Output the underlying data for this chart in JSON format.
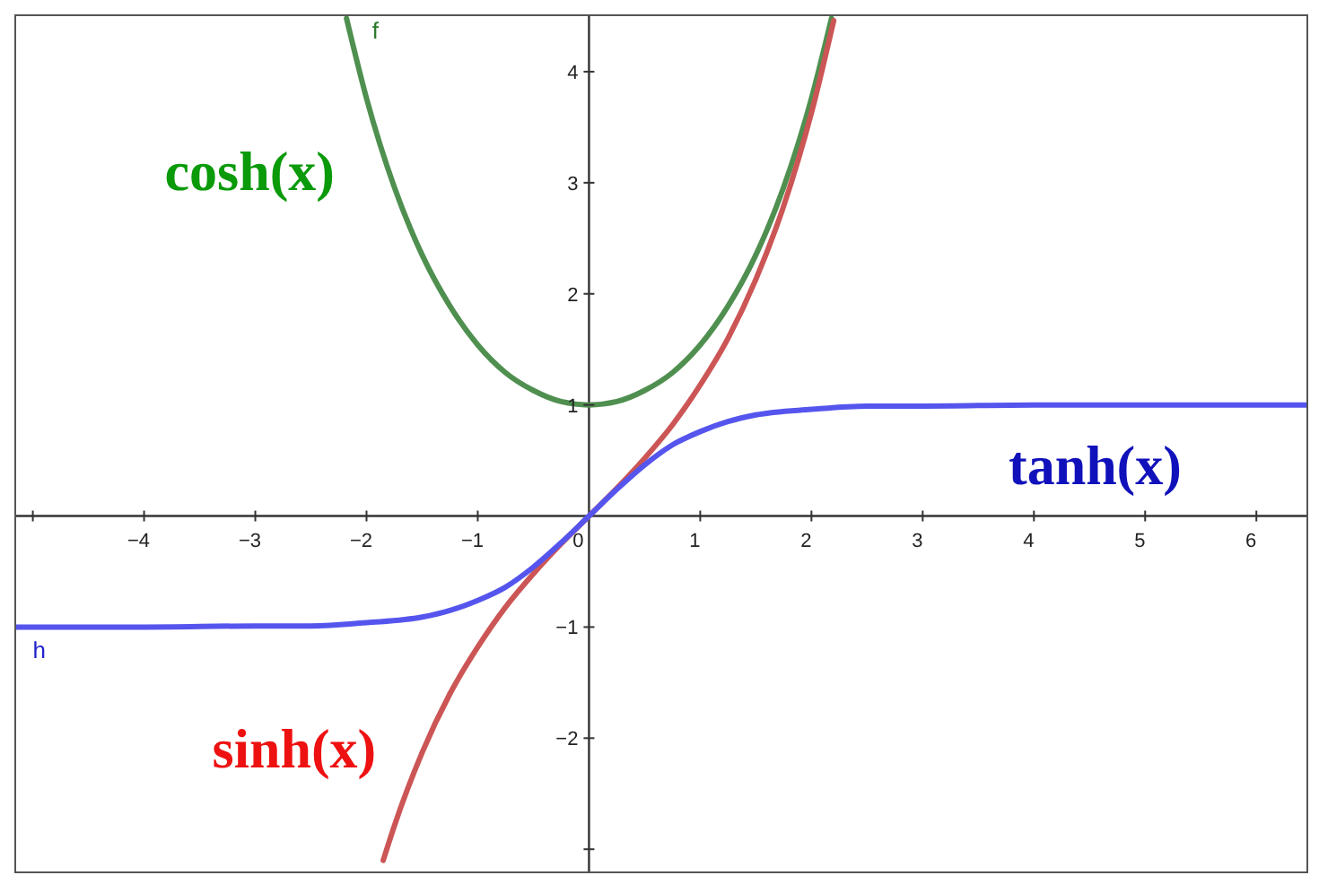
{
  "chart_data": {
    "type": "line",
    "xlim": [
      -5.15,
      6.45
    ],
    "ylim": [
      -3.2,
      4.5
    ],
    "xticks": [
      {
        "value": -5,
        "label": null
      },
      -4,
      -3,
      -2,
      -1,
      0,
      1,
      2,
      3,
      4,
      5,
      6
    ],
    "yticks": [
      {
        "value": -3,
        "label": null
      },
      -2,
      -1,
      1,
      2,
      3,
      4
    ],
    "grid": false,
    "legend": false,
    "marker": "none",
    "line_style": "solid",
    "annotations": [
      "f",
      "h"
    ],
    "series": [
      {
        "name": "cosh(x)",
        "color": "#4f8f4f",
        "x": [
          -2.18,
          -2,
          -1.75,
          -1.5,
          -1.25,
          -1,
          -0.75,
          -0.5,
          -0.25,
          0,
          0.25,
          0.5,
          0.75,
          1,
          1.25,
          1.5,
          1.75,
          2,
          2.18
        ],
        "values": [
          4.48,
          3.76,
          2.96,
          2.35,
          1.89,
          1.54,
          1.29,
          1.13,
          1.03,
          1,
          1.03,
          1.13,
          1.29,
          1.54,
          1.89,
          2.35,
          2.96,
          3.76,
          4.48
        ]
      },
      {
        "name": "sinh(x)",
        "color": "#cc5555",
        "x": [
          -1.85,
          -1.75,
          -1.5,
          -1.25,
          -1,
          -0.75,
          -0.5,
          -0.25,
          0,
          0.25,
          0.5,
          0.75,
          1,
          1.25,
          1.5,
          1.75,
          2,
          2.2
        ],
        "values": [
          -3.1,
          -2.79,
          -2.13,
          -1.6,
          -1.18,
          -0.82,
          -0.52,
          -0.25,
          0,
          0.25,
          0.52,
          0.82,
          1.18,
          1.6,
          2.13,
          2.79,
          3.63,
          4.46
        ]
      },
      {
        "name": "tanh(x)",
        "color": "#5555ee",
        "x": [
          -5.15,
          -4,
          -3,
          -2.5,
          -2,
          -1.5,
          -1.25,
          -1,
          -0.75,
          -0.5,
          -0.25,
          0,
          0.25,
          0.5,
          0.75,
          1,
          1.25,
          1.5,
          2,
          2.5,
          3,
          4,
          5,
          6.45
        ],
        "values": [
          -1,
          -1,
          -0.99,
          -0.99,
          -0.96,
          -0.91,
          -0.85,
          -0.76,
          -0.64,
          -0.46,
          -0.24,
          0,
          0.24,
          0.46,
          0.64,
          0.76,
          0.85,
          0.91,
          0.96,
          0.99,
          0.99,
          1,
          1,
          1
        ]
      }
    ]
  }
}
